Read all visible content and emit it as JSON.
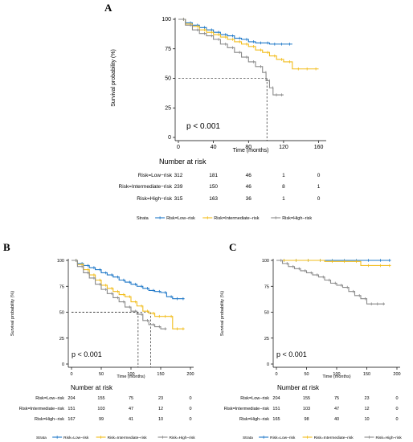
{
  "strata_label": "Strata",
  "chart_data": [
    {
      "panel": "A",
      "type": "line",
      "subtype": "kaplan-meier",
      "xlabel": "Time (months)",
      "ylabel": "Survival probability (%)",
      "xlim": [
        0,
        165
      ],
      "ylim": [
        0,
        100
      ],
      "xticks": [
        0,
        40,
        80,
        120,
        160
      ],
      "yticks": [
        0,
        25,
        50,
        75,
        100
      ],
      "pvalue": "p < 0.001",
      "risk_table_title": "Number at risk",
      "risk_table_times": [
        0,
        40,
        80,
        120,
        160
      ],
      "series": [
        {
          "name": "Risk=Low−risk",
          "color": "#1f78c8",
          "x": [
            0,
            8,
            16,
            24,
            32,
            40,
            48,
            56,
            64,
            72,
            80,
            88,
            96,
            104,
            112,
            120,
            130
          ],
          "y": [
            100,
            97,
            95,
            93,
            91,
            89,
            87,
            86,
            84,
            83,
            81,
            80,
            80,
            79,
            79,
            79,
            79
          ],
          "risk": [
            312,
            181,
            46,
            1,
            0
          ]
        },
        {
          "name": "Risk=Intermediate−risk",
          "color": "#f2bd1d",
          "x": [
            0,
            8,
            16,
            24,
            32,
            40,
            48,
            56,
            64,
            72,
            80,
            88,
            96,
            104,
            112,
            120,
            130,
            140,
            150,
            160
          ],
          "y": [
            100,
            96,
            94,
            91,
            89,
            87,
            85,
            83,
            81,
            79,
            77,
            74,
            72,
            69,
            66,
            64,
            58,
            58,
            58,
            58
          ],
          "risk": [
            239,
            150,
            46,
            8,
            1
          ]
        },
        {
          "name": "Risk=High−risk",
          "color": "#8a8a8a",
          "x": [
            0,
            8,
            16,
            24,
            32,
            40,
            48,
            56,
            64,
            72,
            80,
            88,
            96,
            100,
            104,
            108,
            112,
            120
          ],
          "y": [
            100,
            95,
            91,
            88,
            86,
            83,
            79,
            76,
            72,
            68,
            64,
            60,
            55,
            48,
            42,
            36,
            36,
            36
          ],
          "risk": [
            315,
            163,
            36,
            1,
            0
          ]
        }
      ],
      "median_line": {
        "y": 50,
        "x": 101
      }
    },
    {
      "panel": "B",
      "type": "line",
      "subtype": "kaplan-meier",
      "xlabel": "Time (months)",
      "ylabel": "Survival probability (%)",
      "xlim": [
        0,
        200
      ],
      "ylim": [
        0,
        100
      ],
      "xticks": [
        0,
        50,
        100,
        150,
        200
      ],
      "yticks": [
        0,
        25,
        50,
        75,
        100
      ],
      "pvalue": "p < 0.001",
      "risk_table_title": "Number at risk",
      "risk_table_times": [
        0,
        50,
        100,
        150,
        200
      ],
      "series": [
        {
          "name": "Risk=Low−risk",
          "color": "#1f78c8",
          "x": [
            0,
            10,
            20,
            30,
            40,
            50,
            60,
            70,
            80,
            90,
            100,
            110,
            120,
            130,
            140,
            150,
            160,
            170,
            180,
            190
          ],
          "y": [
            100,
            97,
            95,
            93,
            91,
            88,
            86,
            84,
            81,
            79,
            77,
            75,
            73,
            71,
            70,
            69,
            65,
            63,
            63,
            63
          ],
          "risk": [
            204,
            155,
            75,
            23,
            0
          ]
        },
        {
          "name": "Risk=Intermediate−risk",
          "color": "#f2bd1d",
          "x": [
            0,
            10,
            20,
            30,
            40,
            50,
            60,
            70,
            80,
            90,
            100,
            110,
            120,
            130,
            140,
            150,
            160,
            170,
            180,
            190
          ],
          "y": [
            100,
            96,
            91,
            86,
            81,
            76,
            73,
            70,
            67,
            65,
            60,
            56,
            51,
            49,
            46,
            46,
            46,
            34,
            34,
            34
          ],
          "risk": [
            151,
            103,
            47,
            12,
            0
          ]
        },
        {
          "name": "Risk=High−risk",
          "color": "#8a8a8a",
          "x": [
            0,
            10,
            20,
            30,
            40,
            50,
            60,
            70,
            80,
            90,
            100,
            110,
            120,
            130,
            140,
            150,
            160
          ],
          "y": [
            100,
            94,
            88,
            83,
            77,
            72,
            68,
            64,
            60,
            55,
            51,
            48,
            42,
            38,
            36,
            34,
            34
          ],
          "risk": [
            167,
            99,
            41,
            10,
            0
          ]
        }
      ],
      "median_lines": [
        {
          "y": 50,
          "x": 112
        },
        {
          "y": 50,
          "x": 133
        }
      ]
    },
    {
      "panel": "C",
      "type": "line",
      "subtype": "kaplan-meier",
      "xlabel": "Time (months)",
      "ylabel": "Survival probability (%)",
      "xlim": [
        0,
        200
      ],
      "ylim": [
        0,
        100
      ],
      "xticks": [
        0,
        50,
        100,
        150,
        200
      ],
      "yticks": [
        0,
        25,
        50,
        75,
        100
      ],
      "pvalue": "p < 0.001",
      "risk_table_title": "Number at risk",
      "risk_table_times": [
        0,
        50,
        100,
        150,
        200
      ],
      "series": [
        {
          "name": "Risk=Low−risk",
          "color": "#1f78c8",
          "x": [
            0,
            20,
            40,
            60,
            80,
            100,
            120,
            140,
            160,
            180,
            190
          ],
          "y": [
            100,
            100,
            100,
            100,
            100,
            100,
            100,
            100,
            100,
            100,
            100
          ],
          "risk": [
            204,
            155,
            75,
            23,
            0
          ]
        },
        {
          "name": "Risk=Intermediate−risk",
          "color": "#f2bd1d",
          "x": [
            0,
            20,
            40,
            60,
            80,
            100,
            120,
            140,
            160,
            180,
            190
          ],
          "y": [
            100,
            100,
            100,
            100,
            99,
            99,
            99,
            95,
            95,
            95,
            95
          ],
          "risk": [
            151,
            103,
            47,
            12,
            0
          ]
        },
        {
          "name": "Risk=High−risk",
          "color": "#8a8a8a",
          "x": [
            0,
            10,
            20,
            30,
            40,
            50,
            60,
            70,
            80,
            90,
            100,
            110,
            120,
            130,
            140,
            150,
            160,
            170,
            180
          ],
          "y": [
            100,
            97,
            94,
            92,
            90,
            88,
            86,
            84,
            81,
            78,
            76,
            74,
            70,
            66,
            63,
            58,
            58,
            58,
            58
          ],
          "risk": [
            165,
            98,
            40,
            10,
            0
          ]
        }
      ]
    }
  ]
}
